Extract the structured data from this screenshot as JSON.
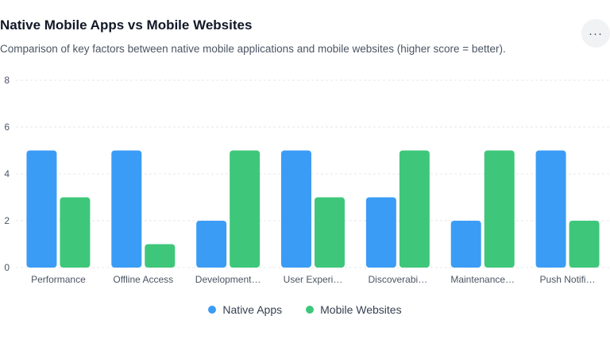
{
  "header": {
    "title": "Native Mobile Apps vs Mobile Websites",
    "subtitle": "Comparison of key factors between native mobile applications and mobile websites (higher score = better).",
    "menu_icon": "ellipsis-icon",
    "menu_glyph": "···"
  },
  "colors": {
    "native": "#3b9cf5",
    "web": "#3ec77a",
    "grid": "#e5e7eb",
    "tick": "#4b5563"
  },
  "chart_data": {
    "type": "bar",
    "categories": [
      "Performance",
      "Offline Access",
      "Development…",
      "User Experi…",
      "Discoverabi…",
      "Maintenance…",
      "Push Notifi…"
    ],
    "series": [
      {
        "name": "Native Apps",
        "values": [
          5,
          5,
          2,
          5,
          3,
          2,
          5
        ]
      },
      {
        "name": "Mobile Websites",
        "values": [
          3,
          1,
          5,
          3,
          5,
          5,
          2
        ]
      }
    ],
    "ylim": [
      0,
      8
    ],
    "yticks": [
      "0",
      "2",
      "4",
      "6",
      "8"
    ],
    "grid": true,
    "legend": "bottom"
  }
}
